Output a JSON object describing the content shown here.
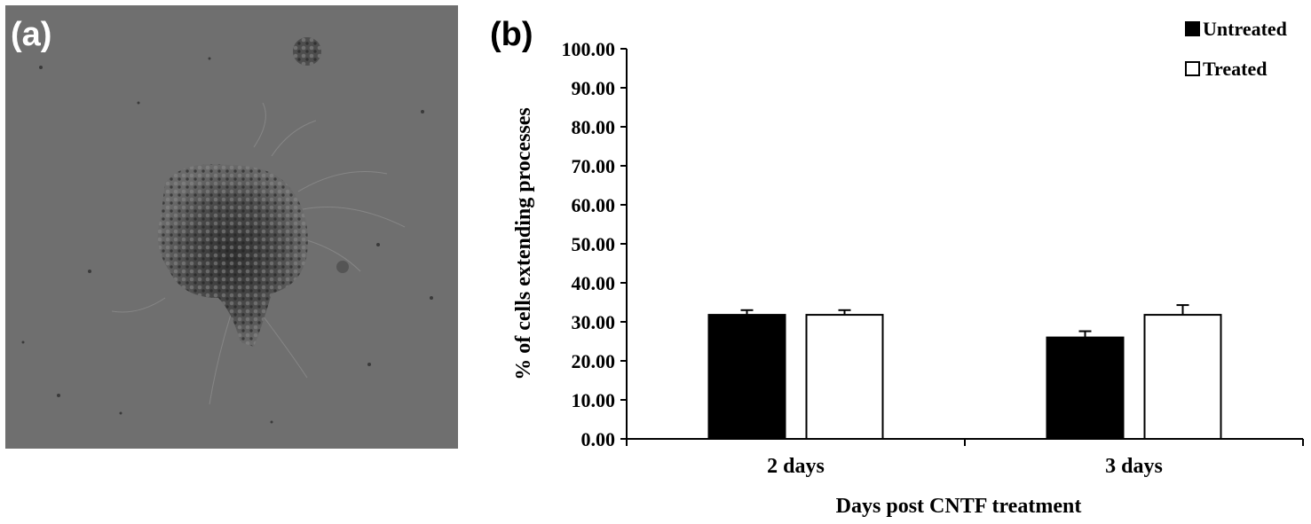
{
  "panels": {
    "a_label": "(a)",
    "b_label": "(b)"
  },
  "colors": {
    "untreated": "#000000",
    "treated": "#ffffff",
    "micrograph_bg": "#6f6f6f"
  },
  "chart_data": {
    "type": "bar",
    "categories": [
      "2 days",
      "3 days"
    ],
    "series": [
      {
        "name": "Untreated",
        "values": [
          31.8,
          26.0
        ],
        "errors": [
          1.2,
          1.6
        ],
        "color": "#000000"
      },
      {
        "name": "Treated",
        "values": [
          31.8,
          31.8
        ],
        "errors": [
          1.2,
          2.5
        ],
        "color": "#ffffff"
      }
    ],
    "title": "",
    "xlabel": "Days post CNTF treatment",
    "ylabel": "% of cells extending processes",
    "ylim": [
      0,
      100
    ],
    "yticks": [
      0,
      10,
      20,
      30,
      40,
      50,
      60,
      70,
      80,
      90,
      100
    ],
    "ytick_labels": [
      "0.00",
      "10.00",
      "20.00",
      "30.00",
      "40.00",
      "50.00",
      "60.00",
      "70.00",
      "80.00",
      "90.00",
      "100.00"
    ],
    "grid": false,
    "legend_position": "top-right"
  }
}
